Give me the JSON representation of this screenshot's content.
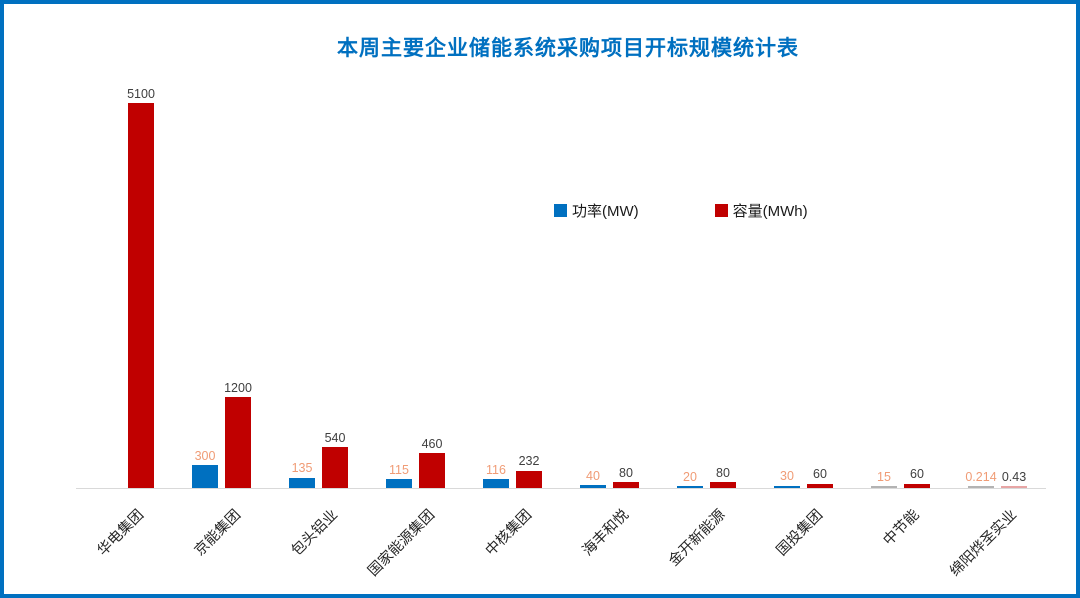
{
  "page": {
    "border_color": "#0070C0",
    "background_color": "#FFFFFF"
  },
  "chart_data": {
    "type": "bar",
    "title": "本周主要企业储能系统采购项目开标规模统计表",
    "title_color": "#0070C0",
    "categories": [
      "华电集团",
      "京能集团",
      "包头铝业",
      "国家能源集团",
      "中核集团",
      "海丰和悦",
      "金开新能源",
      "国投集团",
      "中节能",
      "绵阳烨圣实业"
    ],
    "series": [
      {
        "name": "功率(MW)",
        "color": "#0070C0",
        "label_color": "#F09C76",
        "muted_color": "#B3B3B3",
        "values": [
          null,
          300,
          135,
          115,
          116,
          40,
          20,
          30,
          15,
          0.214
        ]
      },
      {
        "name": "容量(MWh)",
        "color": "#C00000",
        "label_color": "#404040",
        "muted_color": "#E7A5A5",
        "values": [
          5100,
          1200,
          540,
          460,
          232,
          80,
          80,
          60,
          60,
          0.43
        ]
      }
    ],
    "ylim": [
      0,
      5100
    ],
    "grid": false,
    "legend_position": "upper-center",
    "axis_line_color": "#D9D9D9",
    "xlabel": "",
    "ylabel": ""
  }
}
